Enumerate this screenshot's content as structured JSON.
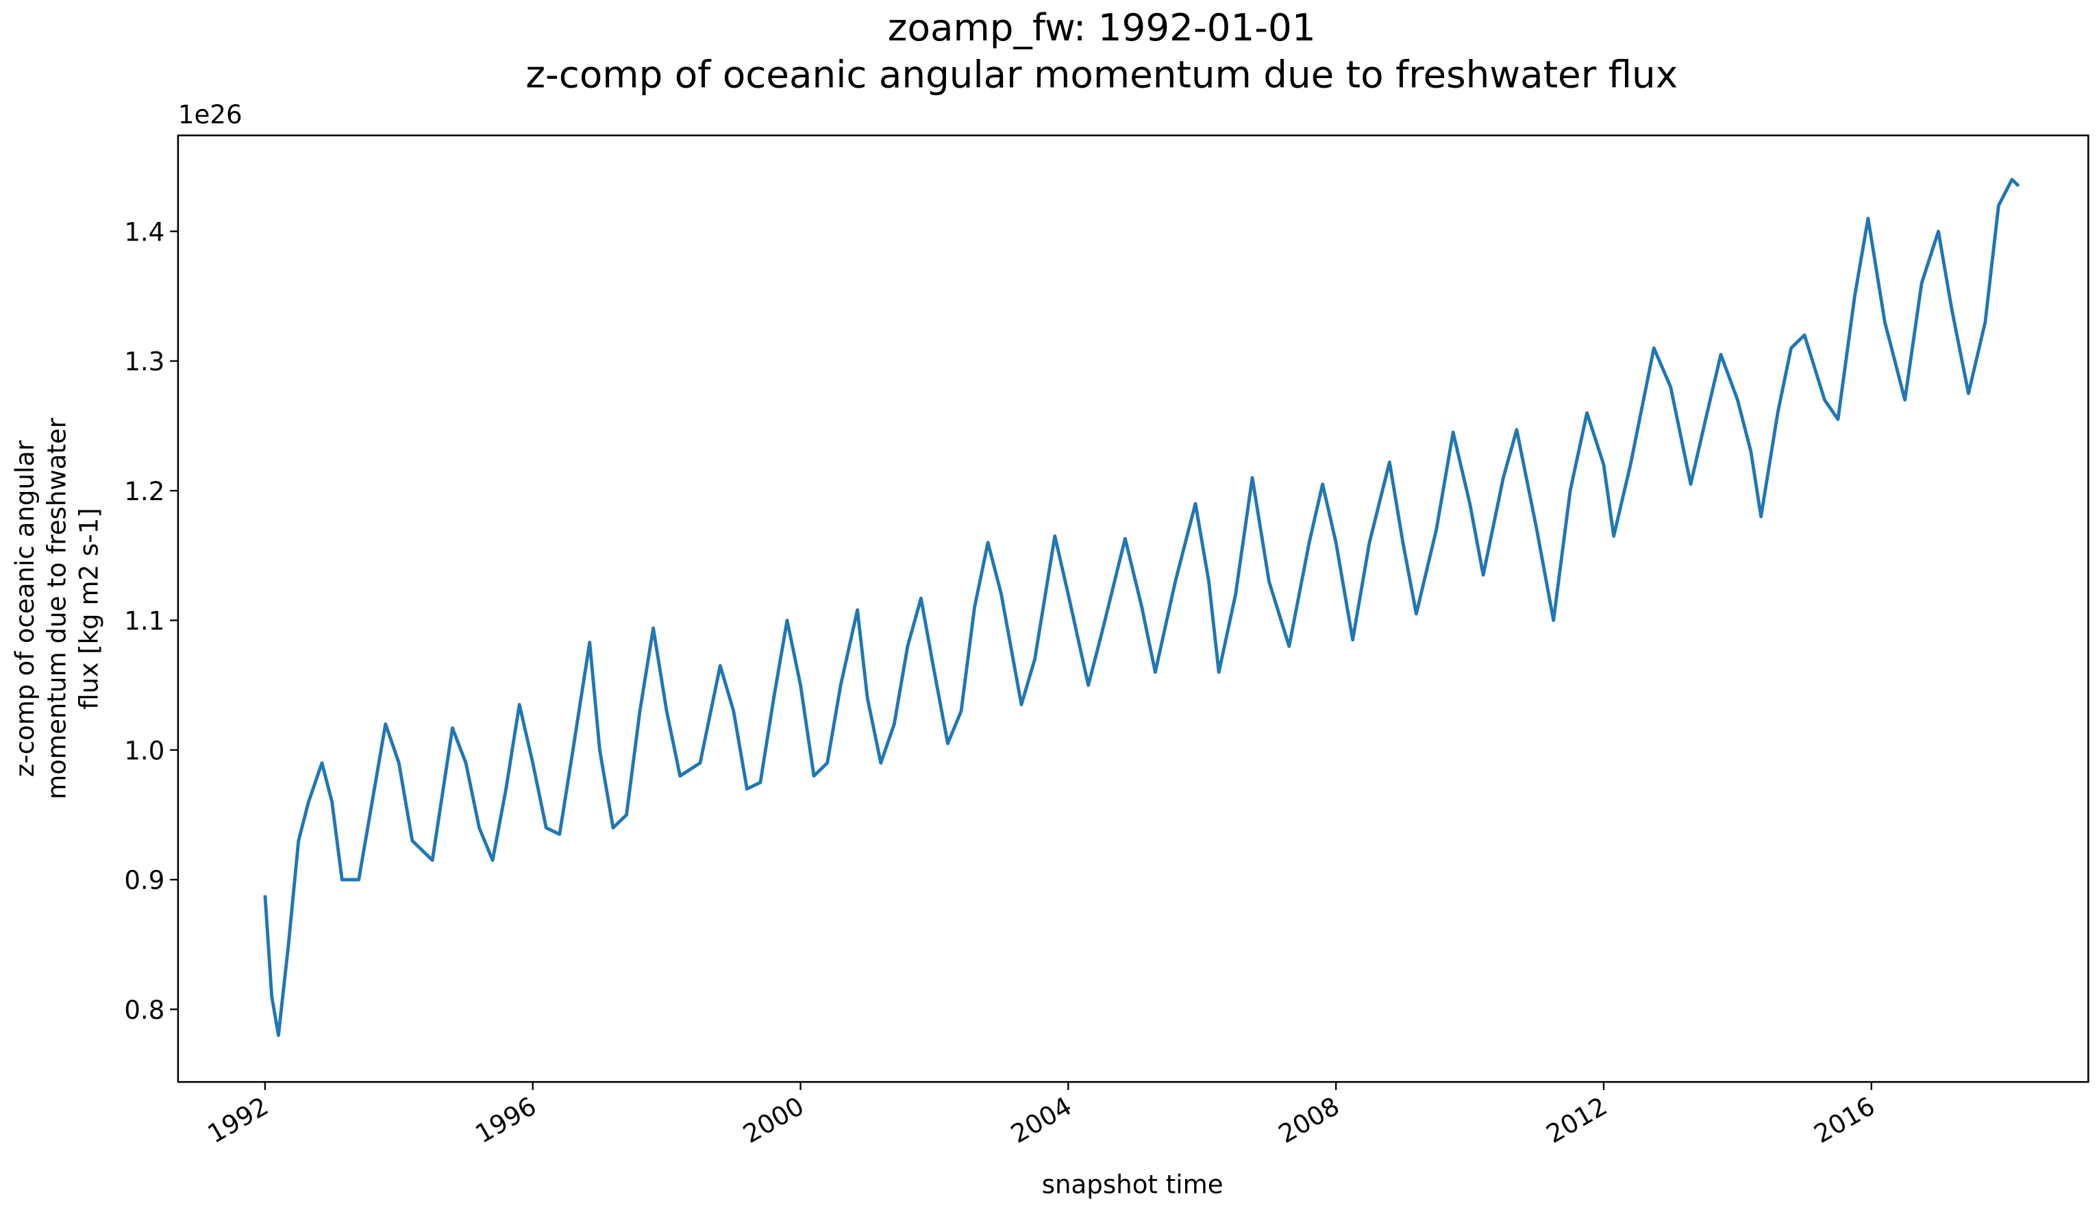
{
  "chart_data": {
    "type": "line",
    "title": "zoamp_fw: 1992-01-01",
    "subtitle": "z-comp of oceanic angular momentum due to freshwater flux",
    "xlabel": "snapshot time",
    "ylabel": [
      "z-comp of oceanic angular",
      "momentum due to freshwater",
      "flux [kg m2 s-1]"
    ],
    "y_offset_label": "1e26",
    "xlim": [
      1990.7,
      2019.24
    ],
    "ylim": [
      0.744,
      1.474
    ],
    "xticks": [
      1992,
      1996,
      2000,
      2004,
      2008,
      2012,
      2016
    ],
    "yticks": [
      0.8,
      0.9,
      {
        "value": 1,
        "label": "1.0"
      },
      1.1,
      1.2,
      1.3,
      1.4
    ],
    "grid": false,
    "x": [
      1992.0,
      1992.1,
      1992.2,
      1992.35,
      1992.5,
      1992.65,
      1992.85,
      1993.0,
      1993.15,
      1993.4,
      1993.6,
      1993.8,
      1994.0,
      1994.2,
      1994.5,
      1994.8,
      1995.0,
      1995.2,
      1995.4,
      1995.6,
      1995.8,
      1996.0,
      1996.2,
      1996.4,
      1996.6,
      1996.85,
      1997.0,
      1997.2,
      1997.4,
      1997.6,
      1997.8,
      1998.0,
      1998.2,
      1998.5,
      1998.8,
      1999.0,
      1999.2,
      1999.4,
      1999.6,
      1999.8,
      2000.0,
      2000.2,
      2000.4,
      2000.6,
      2000.85,
      2001.0,
      2001.2,
      2001.4,
      2001.6,
      2001.8,
      2002.0,
      2002.2,
      2002.4,
      2002.6,
      2002.8,
      2003.0,
      2003.3,
      2003.5,
      2003.8,
      2004.0,
      2004.3,
      2004.5,
      2004.85,
      2005.1,
      2005.3,
      2005.6,
      2005.9,
      2006.1,
      2006.25,
      2006.5,
      2006.75,
      2007.0,
      2007.3,
      2007.6,
      2007.8,
      2008.0,
      2008.25,
      2008.5,
      2008.8,
      2009.0,
      2009.2,
      2009.5,
      2009.75,
      2010.0,
      2010.2,
      2010.5,
      2010.7,
      2011.0,
      2011.25,
      2011.5,
      2011.75,
      2012.0,
      2012.15,
      2012.4,
      2012.75,
      2013.0,
      2013.3,
      2013.5,
      2013.75,
      2014.0,
      2014.2,
      2014.35,
      2014.6,
      2014.8,
      2015.0,
      2015.3,
      2015.5,
      2015.75,
      2015.95,
      2016.2,
      2016.5,
      2016.75,
      2017.0,
      2017.2,
      2017.45,
      2017.7,
      2017.9,
      2018.1,
      2018.2
    ],
    "series": [
      {
        "name": "zoamp_fw",
        "color": "#1f77b4",
        "values": [
          0.888,
          0.81,
          0.78,
          0.85,
          0.93,
          0.96,
          0.99,
          0.96,
          0.9,
          0.9,
          0.96,
          1.02,
          0.99,
          0.93,
          0.915,
          1.017,
          0.99,
          0.94,
          0.915,
          0.97,
          1.035,
          0.99,
          0.94,
          0.935,
          1.0,
          1.083,
          1.0,
          0.94,
          0.95,
          1.03,
          1.094,
          1.03,
          0.98,
          0.99,
          1.065,
          1.03,
          0.97,
          0.975,
          1.04,
          1.1,
          1.05,
          0.98,
          0.99,
          1.05,
          1.108,
          1.04,
          0.99,
          1.02,
          1.08,
          1.117,
          1.06,
          1.005,
          1.03,
          1.11,
          1.16,
          1.12,
          1.035,
          1.07,
          1.165,
          1.12,
          1.05,
          1.09,
          1.163,
          1.11,
          1.06,
          1.13,
          1.19,
          1.13,
          1.06,
          1.12,
          1.21,
          1.13,
          1.08,
          1.16,
          1.205,
          1.16,
          1.085,
          1.16,
          1.222,
          1.16,
          1.105,
          1.17,
          1.245,
          1.19,
          1.135,
          1.21,
          1.247,
          1.17,
          1.1,
          1.2,
          1.26,
          1.22,
          1.165,
          1.22,
          1.31,
          1.28,
          1.205,
          1.25,
          1.305,
          1.27,
          1.23,
          1.18,
          1.26,
          1.31,
          1.32,
          1.27,
          1.255,
          1.35,
          1.41,
          1.33,
          1.27,
          1.36,
          1.4,
          1.34,
          1.275,
          1.33,
          1.42,
          1.44,
          1.435
        ]
      }
    ]
  }
}
